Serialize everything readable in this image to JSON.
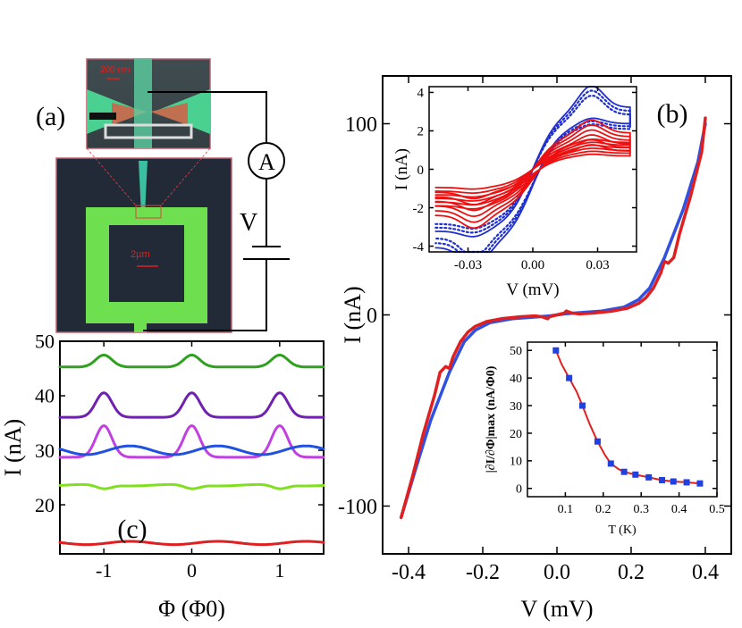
{
  "panel_a": {
    "label": "(a)",
    "scale_top": "200 nm",
    "scale_bottom": "2µm",
    "ammeter": "A",
    "voltage": "V"
  },
  "chart_data": [
    {
      "id": "b-main",
      "type": "line",
      "label": "(b)",
      "xlabel": "V (mV)",
      "ylabel": "I (nA)",
      "xlim": [
        -0.47,
        0.47
      ],
      "ylim": [
        -125,
        125
      ],
      "xticks": [
        -0.4,
        -0.2,
        0.0,
        0.2,
        0.4
      ],
      "xtick_labels": [
        "-0.4",
        "-0.2",
        "0.0",
        "0.2",
        "0.4"
      ],
      "yticks": [
        -100,
        0,
        100
      ],
      "ytick_labels": [
        "-100",
        "0",
        "100"
      ],
      "series": [
        {
          "name": "measured-blue",
          "color": "#3050e0",
          "x": [
            -0.42,
            -0.38,
            -0.34,
            -0.31,
            -0.29,
            -0.27,
            -0.25,
            -0.22,
            -0.18,
            -0.12,
            -0.05,
            -0.02,
            0.0,
            0.02,
            0.05,
            0.12,
            0.18,
            0.22,
            0.25,
            0.27,
            0.29,
            0.31,
            0.34,
            0.38,
            0.4
          ],
          "y": [
            -106,
            -80,
            -55,
            -40,
            -30,
            -22,
            -14,
            -8,
            -4,
            -2,
            -1,
            -0.5,
            0,
            0.5,
            1,
            2,
            4,
            8,
            14,
            22,
            30,
            40,
            55,
            80,
            100
          ]
        },
        {
          "name": "measured-red",
          "color": "#e02020",
          "x": [
            -0.42,
            -0.39,
            -0.36,
            -0.33,
            -0.315,
            -0.3,
            -0.29,
            -0.28,
            -0.26,
            -0.24,
            -0.22,
            -0.19,
            -0.15,
            -0.1,
            -0.06,
            -0.04,
            -0.025,
            -0.02,
            0.0,
            0.02,
            0.025,
            0.04,
            0.06,
            0.1,
            0.15,
            0.19,
            0.22,
            0.24,
            0.26,
            0.28,
            0.29,
            0.3,
            0.315,
            0.33,
            0.36,
            0.39,
            0.4
          ],
          "y": [
            -106,
            -85,
            -62,
            -42,
            -30,
            -27,
            -28,
            -22,
            -14,
            -9,
            -6,
            -3.5,
            -2,
            -1,
            -0.5,
            -1,
            -2,
            -1,
            0,
            1,
            2,
            1,
            0.5,
            1,
            2,
            3.5,
            6,
            9,
            14,
            22,
            28,
            27,
            30,
            42,
            62,
            85,
            103
          ]
        }
      ]
    },
    {
      "id": "b-inset-iv",
      "type": "line",
      "xlabel": "V (mV)",
      "ylabel": "I (nA)",
      "xlim": [
        -0.048,
        0.048
      ],
      "ylim": [
        -4.3,
        4.3
      ],
      "xticks": [
        -0.03,
        0.0,
        0.03
      ],
      "xtick_labels": [
        "-0.03",
        "0.00",
        "0.03"
      ],
      "yticks": [
        -4,
        -2,
        0,
        2,
        4
      ],
      "ytick_labels": [
        "-4",
        "-2",
        "0",
        "2",
        "4"
      ],
      "series": [
        {
          "name": "blue-loop-max",
          "color": "#2030d0",
          "amplitude": 3.4,
          "style": "solid"
        },
        {
          "name": "blue-loop-2",
          "color": "#2030d0",
          "amplitude": 3.2,
          "style": "dotted"
        },
        {
          "name": "blue-loop-3",
          "color": "#2030d0",
          "amplitude": 3.0,
          "style": "dotted"
        },
        {
          "name": "red-loop-1",
          "color": "#ee1010",
          "amplitude": 2.0,
          "style": "solid"
        },
        {
          "name": "red-loop-2",
          "color": "#ee1010",
          "amplitude": 1.8,
          "style": "solid"
        },
        {
          "name": "red-loop-3",
          "color": "#ee1010",
          "amplitude": 1.6,
          "style": "solid"
        },
        {
          "name": "red-loop-4",
          "color": "#ee1010",
          "amplitude": 1.4,
          "style": "solid"
        },
        {
          "name": "red-loop-5",
          "color": "#ee1010",
          "amplitude": 1.2,
          "style": "solid"
        },
        {
          "name": "red-loop-6",
          "color": "#ee1010",
          "amplitude": 1.0,
          "style": "solid"
        }
      ]
    },
    {
      "id": "b-inset-dIdPhi",
      "type": "line",
      "xlabel": "T (K)",
      "ylabel": "|∂I/∂Φ|max (nA/Φ0)",
      "xlim": [
        0.0,
        0.5
      ],
      "ylim": [
        -3,
        53
      ],
      "xticks": [
        0.1,
        0.2,
        0.3,
        0.4,
        0.5
      ],
      "xtick_labels": [
        "0.1",
        "0.2",
        "0.3",
        "0.4",
        "0.5"
      ],
      "yticks": [
        0,
        10,
        20,
        30,
        40,
        50
      ],
      "ytick_labels": [
        "0",
        "10",
        "20",
        "30",
        "40",
        "50"
      ],
      "series": [
        {
          "name": "data-points",
          "color": "#2040e0",
          "x": [
            0.075,
            0.11,
            0.145,
            0.185,
            0.22,
            0.255,
            0.285,
            0.32,
            0.355,
            0.385,
            0.42,
            0.455
          ],
          "y": [
            50,
            40,
            30,
            17,
            9,
            6,
            5,
            4,
            3,
            2.5,
            2.2,
            1.8
          ]
        },
        {
          "name": "fit-line",
          "color": "#e02020",
          "x": [
            0.075,
            0.09,
            0.11,
            0.13,
            0.145,
            0.165,
            0.185,
            0.205,
            0.22,
            0.24,
            0.255,
            0.285,
            0.32,
            0.355,
            0.385,
            0.42,
            0.455
          ],
          "y": [
            50,
            45,
            40,
            35,
            30,
            23,
            17,
            12,
            9,
            7,
            6,
            5,
            4,
            3,
            2.5,
            2.2,
            1.8
          ]
        }
      ]
    },
    {
      "id": "c-oscillations",
      "type": "line",
      "label": "(c)",
      "xlabel": "Φ (Φ0)",
      "ylabel": "I (nA)",
      "xlim": [
        -1.5,
        1.5
      ],
      "ylim": [
        11,
        50
      ],
      "xticks": [
        -1,
        0,
        1
      ],
      "xtick_labels": [
        "-1",
        "0",
        "1"
      ],
      "yticks": [
        20,
        30,
        40,
        50
      ],
      "ytick_labels": [
        "20",
        "30",
        "40",
        "50"
      ],
      "series": [
        {
          "name": "green",
          "color": "#30a020",
          "base": 45.5,
          "amp": 2.2,
          "shape": "peak"
        },
        {
          "name": "purple",
          "color": "#7020b0",
          "base": 36.5,
          "amp": 4.5,
          "shape": "peak"
        },
        {
          "name": "magenta",
          "color": "#c040e0",
          "base": 29.3,
          "amp": 5.8,
          "shape": "peak"
        },
        {
          "name": "blue",
          "color": "#2050e0",
          "base": 30.0,
          "amp": 0.8,
          "shape": "wiggle"
        },
        {
          "name": "lime",
          "color": "#80e020",
          "base": 23.6,
          "amp": 0.7,
          "shape": "dip"
        },
        {
          "name": "red",
          "color": "#e02020",
          "base": 13.0,
          "amp": 0.3,
          "shape": "wiggle"
        }
      ]
    }
  ]
}
